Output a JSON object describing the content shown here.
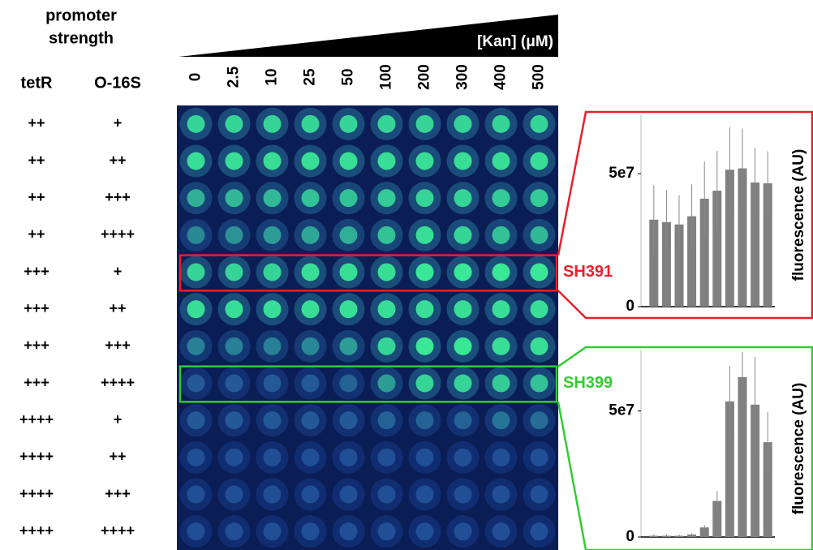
{
  "chart_data": [
    {
      "type": "heatmap",
      "title_lines": [
        "promoter",
        "strength"
      ],
      "x_label": "[Kan] (μM)",
      "columns": [
        "tetR",
        "O-16S"
      ],
      "rows": [
        [
          "++",
          "+"
        ],
        [
          "++",
          "++"
        ],
        [
          "++",
          "+++"
        ],
        [
          "++",
          "++++"
        ],
        [
          "+++",
          "+"
        ],
        [
          "+++",
          "++"
        ],
        [
          "+++",
          "+++"
        ],
        [
          "+++",
          "++++"
        ],
        [
          "++++",
          "+"
        ],
        [
          "++++",
          "++"
        ],
        [
          "++++",
          "+++"
        ],
        [
          "++++",
          "++++"
        ]
      ],
      "categories": [
        0,
        2.5,
        10,
        25,
        50,
        100,
        200,
        300,
        400,
        500
      ],
      "values": [
        [
          0.8,
          0.8,
          0.8,
          0.8,
          0.8,
          0.8,
          0.8,
          0.8,
          0.8,
          0.8
        ],
        [
          0.85,
          0.85,
          0.85,
          0.85,
          0.85,
          0.85,
          0.85,
          0.85,
          0.85,
          0.85
        ],
        [
          0.6,
          0.65,
          0.65,
          0.7,
          0.7,
          0.75,
          0.8,
          0.8,
          0.75,
          0.75
        ],
        [
          0.4,
          0.45,
          0.5,
          0.55,
          0.6,
          0.7,
          0.85,
          0.8,
          0.7,
          0.65
        ],
        [
          0.8,
          0.8,
          0.8,
          0.85,
          0.85,
          0.85,
          0.9,
          0.9,
          0.9,
          0.9
        ],
        [
          0.85,
          0.85,
          0.85,
          0.85,
          0.85,
          0.85,
          0.85,
          0.85,
          0.85,
          0.85
        ],
        [
          0.35,
          0.35,
          0.35,
          0.4,
          0.5,
          0.8,
          0.9,
          0.9,
          0.85,
          0.85
        ],
        [
          0.15,
          0.15,
          0.15,
          0.15,
          0.2,
          0.5,
          0.8,
          0.8,
          0.75,
          0.7
        ],
        [
          0.15,
          0.15,
          0.15,
          0.15,
          0.15,
          0.2,
          0.2,
          0.2,
          0.3,
          0.25
        ],
        [
          0.1,
          0.1,
          0.1,
          0.1,
          0.1,
          0.1,
          0.1,
          0.1,
          0.1,
          0.1
        ],
        [
          0.1,
          0.1,
          0.1,
          0.1,
          0.1,
          0.1,
          0.1,
          0.1,
          0.1,
          0.1
        ],
        [
          0.1,
          0.1,
          0.1,
          0.1,
          0.1,
          0.1,
          0.1,
          0.1,
          0.1,
          0.1
        ]
      ]
    },
    {
      "type": "bar",
      "label": "SH391",
      "row": 4,
      "y_label": "fluorescence (AU)",
      "color": "#808080",
      "frame_color": "#e8202a",
      "values": [
        32700000.0,
        31800000.0,
        30900000.0,
        34000000.0,
        40600000.0,
        43600000.0,
        51500000.0,
        52000000.0,
        46700000.0,
        46400000.0
      ],
      "errors": [
        13000000.0,
        12000000.0,
        11000000.0,
        12000000.0,
        14000000.0,
        15000000.0,
        16000000.0,
        15000000.0,
        13000000.0,
        12000000.0
      ],
      "ylim": [
        0,
        72000000.0
      ],
      "yticks": [
        0,
        {
          "value": 50000000.0,
          "label": "5e7"
        }
      ]
    },
    {
      "type": "bar",
      "label": "SH399",
      "row": 7,
      "y_label": "fluorescence (AU)",
      "color": "#808080",
      "frame_color": "#33cc33",
      "values": [
        500000.0,
        500000.0,
        500000.0,
        1000000.0,
        3800000.0,
        14300000.0,
        53800000.0,
        63400000.0,
        52500000.0,
        37600000.0
      ],
      "errors": [
        500000.0,
        500000.0,
        500000.0,
        500000.0,
        1000000.0,
        4000000.0,
        14000000.0,
        10000000.0,
        19000000.0,
        12000000.0
      ],
      "ylim": [
        0,
        74000000.0
      ],
      "yticks": [
        0,
        {
          "value": 50000000.0,
          "label": "5e7"
        }
      ]
    }
  ]
}
